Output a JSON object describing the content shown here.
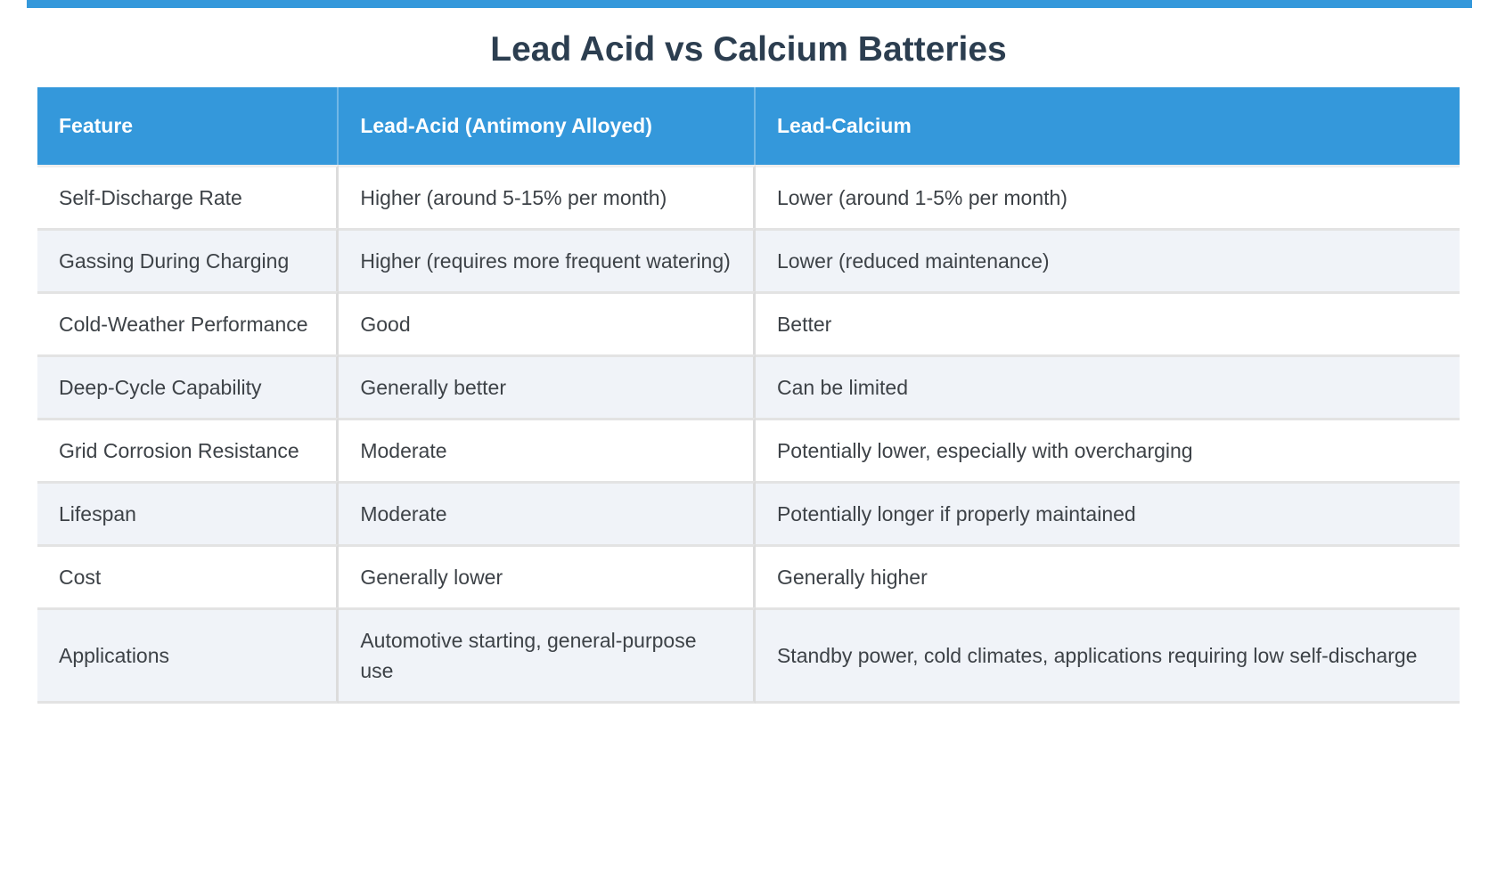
{
  "title": "Lead Acid vs Calcium Batteries",
  "colors": {
    "accent_blue": "#3498db",
    "header_text": "#ffffff",
    "title_text": "#2c3e50",
    "body_text": "#3d4247",
    "row_bg": "#ffffff",
    "row_alt_bg": "#f0f3f8",
    "divider": "#e0e0e0"
  },
  "table": {
    "columns": [
      "Feature",
      "Lead-Acid (Antimony Alloyed)",
      "Lead-Calcium"
    ],
    "rows": [
      [
        "Self-Discharge Rate",
        "Higher (around 5-15% per month)",
        "Lower (around 1-5% per month)"
      ],
      [
        "Gassing During Charging",
        "Higher (requires more frequent watering)",
        "Lower (reduced maintenance)"
      ],
      [
        "Cold-Weather Performance",
        "Good",
        "Better"
      ],
      [
        "Deep-Cycle Capability",
        "Generally better",
        "Can be limited"
      ],
      [
        "Grid Corrosion Resistance",
        "Moderate",
        "Potentially lower, especially with overcharging"
      ],
      [
        "Lifespan",
        "Moderate",
        "Potentially longer if properly maintained"
      ],
      [
        "Cost",
        "Generally lower",
        "Generally higher"
      ],
      [
        "Applications",
        "Automotive starting, general-purpose use",
        "Standby power, cold climates, applications requiring low self-discharge"
      ]
    ]
  }
}
